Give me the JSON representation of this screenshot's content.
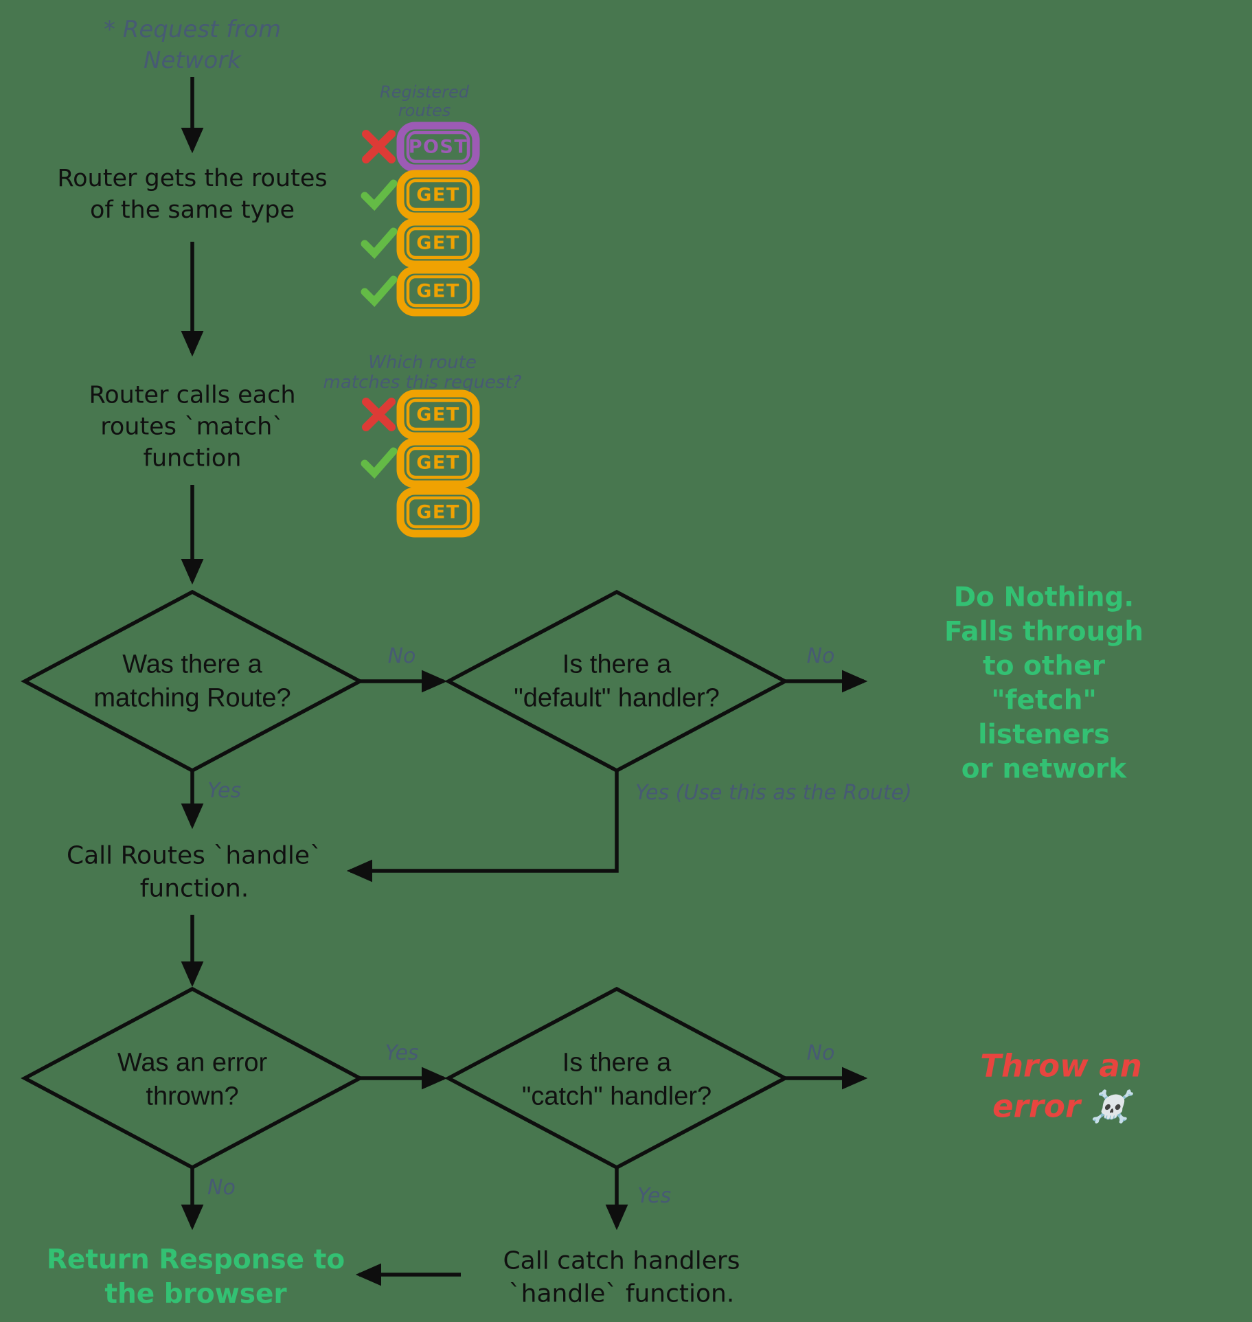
{
  "colors": {
    "background": "#48774F",
    "line": "#0e0e0e",
    "muted_blue": "#475a74",
    "success_green": "#33c173",
    "error_red": "#e8453f",
    "orange": "#f0a202",
    "purple": "#9d5bb5",
    "check_green": "#64bb46",
    "cross_red": "#dd3b36"
  },
  "flow": {
    "request_from_network": "* Request from\nNetwork",
    "router_gets_routes": "Router gets the routes\nof the same type",
    "router_calls_match": "Router calls each\nroutes `match`\nfunction",
    "was_matching_route": "Was there a\nmatching Route?",
    "is_default_handler": "Is there a\n\"default\" handler?",
    "do_nothing": "Do Nothing.\nFalls through to other\n\"fetch\" listeners\nor network",
    "call_routes_handle": "Call Routes `handle`\nfunction.",
    "was_error_thrown": "Was an error\nthrown?",
    "is_catch_handler": "Is there a\n\"catch\" handler?",
    "throw_error": "Throw an error ☠️",
    "return_response": "Return Response to\nthe browser",
    "call_catch_handlers": "Call catch handlers\n`handle` function."
  },
  "labels": {
    "registered_routes": "Registered\nroutes",
    "which_route": "Which route\nmatches this request?",
    "no_matching_route": "No",
    "no_default_handler": "No",
    "yes_matching_route": "Yes",
    "yes_use_this": "Yes (Use this as the Route)",
    "yes_error_thrown": "Yes",
    "no_catch_handler": "No",
    "no_error_thrown": "No",
    "yes_catch_handler": "Yes"
  },
  "badges": {
    "registered": [
      {
        "method": "POST",
        "status": "rejected"
      },
      {
        "method": "GET",
        "status": "accepted"
      },
      {
        "method": "GET",
        "status": "accepted"
      },
      {
        "method": "GET",
        "status": "accepted"
      }
    ],
    "matching": [
      {
        "method": "GET",
        "status": "rejected"
      },
      {
        "method": "GET",
        "status": "accepted"
      },
      {
        "method": "GET",
        "status": "none"
      }
    ]
  }
}
